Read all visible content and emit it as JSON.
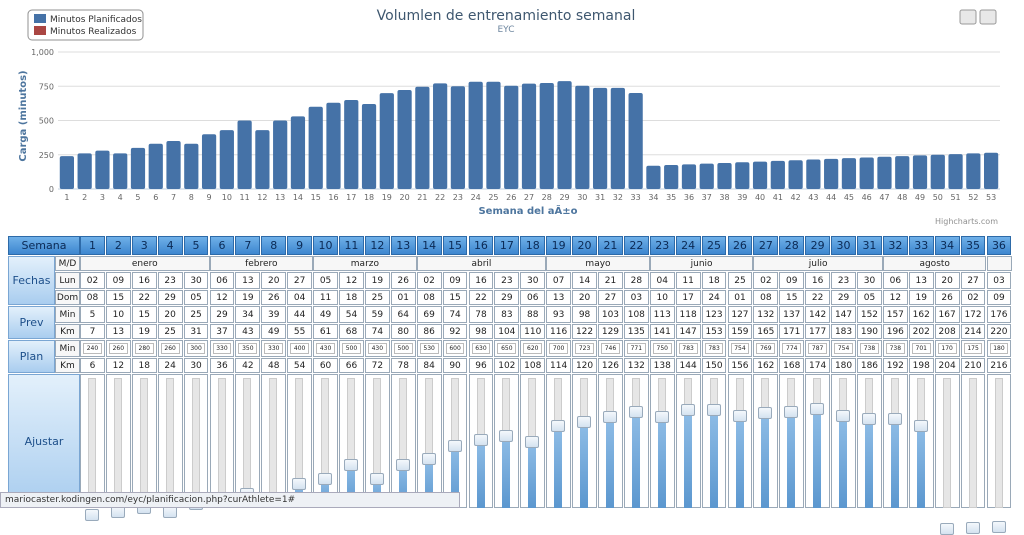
{
  "chart_data": {
    "type": "bar",
    "title": "Volumlen de entrenamiento semanal",
    "subtitle": "EYC",
    "x_label": "Semana del aÃ±o",
    "y_label": "Carga (minutos)",
    "credits": "Highcharts.com",
    "categories": [
      1,
      2,
      3,
      4,
      5,
      6,
      7,
      8,
      9,
      10,
      11,
      12,
      13,
      14,
      15,
      16,
      17,
      18,
      19,
      20,
      21,
      22,
      23,
      24,
      25,
      26,
      27,
      28,
      29,
      30,
      31,
      32,
      33,
      34,
      35,
      36,
      37,
      38,
      39,
      40,
      41,
      42,
      43,
      44,
      45,
      46,
      47,
      48,
      49,
      50,
      51,
      52,
      53
    ],
    "series": [
      {
        "name": "Minutos Planificados",
        "color": "#4572a7",
        "values": [
          240,
          260,
          280,
          260,
          300,
          330,
          350,
          330,
          400,
          430,
          500,
          430,
          500,
          530,
          600,
          630,
          650,
          620,
          700,
          723,
          746,
          771,
          750,
          783,
          783,
          754,
          769,
          774,
          787,
          754,
          738,
          738,
          701,
          170,
          175,
          180,
          185,
          190,
          195,
          200,
          205,
          210,
          215,
          220,
          225,
          230,
          235,
          240,
          245,
          250,
          255,
          260,
          265
        ]
      },
      {
        "name": "Minutos Realizados",
        "color": "#aa4643",
        "values": [
          null,
          null,
          null,
          null,
          null,
          null,
          null,
          null,
          null,
          null,
          null,
          null,
          null,
          null,
          null,
          null,
          null,
          null,
          null,
          null,
          null,
          null,
          null,
          null,
          null,
          null,
          null,
          null,
          null,
          null,
          null,
          null,
          null,
          null,
          null,
          null,
          null,
          null,
          null,
          null,
          null,
          null,
          null,
          null,
          null,
          null,
          null,
          null,
          null,
          null,
          null,
          null,
          null
        ]
      }
    ],
    "ylim": [
      0,
      1000
    ],
    "yticks": [
      0,
      250,
      500,
      750,
      {
        "value": 1000,
        "label": "1,000"
      }
    ],
    "grid": true
  },
  "table": {
    "header": "Semana",
    "fechas": "Fechas",
    "md": "M/D",
    "lun": "Lun",
    "dom": "Dom",
    "prev": "Prev",
    "plan": "Plan",
    "min": "Min",
    "km": "Km",
    "ajustar": "Ajustar",
    "weeks": [
      1,
      2,
      3,
      4,
      5,
      6,
      7,
      8,
      9,
      10,
      11,
      12,
      13,
      14,
      15,
      16,
      17,
      18,
      19,
      20,
      21,
      22,
      23,
      24,
      25,
      26,
      27,
      28,
      29,
      30,
      31,
      32,
      33,
      34,
      35,
      36
    ],
    "months": [
      "enero",
      "febrero",
      "marzo",
      "abril",
      "mayo",
      "junio",
      "julio",
      "agosto"
    ],
    "lun_dates": [
      "02",
      "09",
      "16",
      "23",
      "30",
      "06",
      "13",
      "20",
      "27",
      "05",
      "12",
      "19",
      "26",
      "02",
      "09",
      "16",
      "23",
      "30",
      "07",
      "14",
      "21",
      "28",
      "04",
      "11",
      "18",
      "25",
      "02",
      "09",
      "16",
      "23",
      "30",
      "06",
      "13",
      "20",
      "27",
      "03"
    ],
    "dom_dates": [
      "08",
      "15",
      "22",
      "29",
      "05",
      "12",
      "19",
      "26",
      "04",
      "11",
      "18",
      "25",
      "01",
      "08",
      "15",
      "22",
      "29",
      "06",
      "13",
      "20",
      "27",
      "03",
      "10",
      "17",
      "24",
      "01",
      "08",
      "15",
      "22",
      "29",
      "05",
      "12",
      "19",
      "26",
      "02",
      "09"
    ],
    "prev_min": [
      5,
      10,
      15,
      20,
      25,
      29,
      34,
      39,
      44,
      49,
      54,
      59,
      64,
      69,
      74,
      78,
      83,
      88,
      93,
      98,
      103,
      108,
      113,
      118,
      123,
      127,
      132,
      137,
      142,
      147,
      152,
      157,
      162,
      167,
      172,
      176
    ],
    "prev_km": [
      7,
      13,
      19,
      25,
      31,
      37,
      43,
      49,
      55,
      61,
      68,
      74,
      80,
      86,
      92,
      98,
      104,
      110,
      116,
      122,
      129,
      135,
      141,
      147,
      153,
      159,
      165,
      171,
      177,
      183,
      190,
      196,
      202,
      208,
      214,
      220
    ],
    "plan_min": [
      240,
      260,
      280,
      260,
      300,
      330,
      350,
      330,
      400,
      430,
      500,
      430,
      500,
      530,
      600,
      630,
      650,
      620,
      700,
      723,
      746,
      771,
      750,
      783,
      783,
      754,
      769,
      774,
      787,
      754,
      738,
      738,
      701,
      170,
      175,
      180
    ],
    "plan_km": [
      6,
      12,
      18,
      24,
      30,
      36,
      42,
      48,
      54,
      60,
      66,
      72,
      78,
      84,
      90,
      96,
      102,
      108,
      114,
      120,
      126,
      132,
      138,
      144,
      150,
      156,
      162,
      168,
      174,
      180,
      186,
      192,
      198,
      204,
      210,
      216
    ]
  },
  "status": "mariocaster.kodingen.com/eyc/planificacion.php?curAthlete=1#"
}
